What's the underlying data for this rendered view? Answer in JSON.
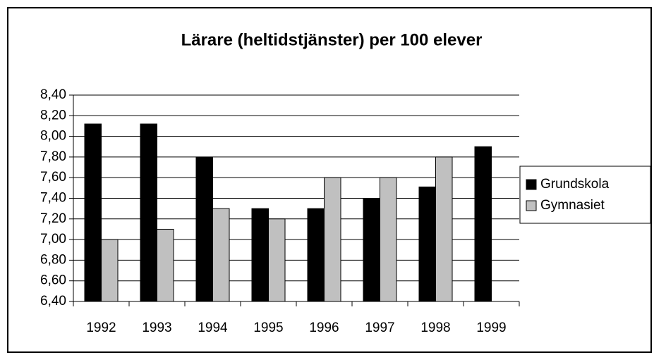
{
  "chart_data": {
    "type": "bar",
    "title": "Lärare (heltidstjänster) per 100 elever",
    "categories": [
      "1992",
      "1993",
      "1994",
      "1995",
      "1996",
      "1997",
      "1998",
      "1999"
    ],
    "series": [
      {
        "name": "Grundskola",
        "color": "#000000",
        "values": [
          8.12,
          8.12,
          7.8,
          7.3,
          7.3,
          7.4,
          7.51,
          7.9
        ]
      },
      {
        "name": "Gymnasiet",
        "color": "#c0c0c0",
        "values": [
          7.0,
          7.1,
          7.3,
          7.2,
          7.6,
          7.6,
          7.8,
          null
        ]
      }
    ],
    "ylim": [
      6.4,
      8.4
    ],
    "yticks": [
      {
        "value": 6.4,
        "label": "6,40"
      },
      {
        "value": 6.6,
        "label": "6,60"
      },
      {
        "value": 6.8,
        "label": "6,80"
      },
      {
        "value": 7.0,
        "label": "7,00"
      },
      {
        "value": 7.2,
        "label": "7,20"
      },
      {
        "value": 7.4,
        "label": "7,40"
      },
      {
        "value": 7.6,
        "label": "7,60"
      },
      {
        "value": 7.8,
        "label": "7,80"
      },
      {
        "value": 8.0,
        "label": "8,00"
      },
      {
        "value": 8.2,
        "label": "8,20"
      },
      {
        "value": 8.4,
        "label": "8,40"
      }
    ],
    "grid": true,
    "legend": "right"
  }
}
